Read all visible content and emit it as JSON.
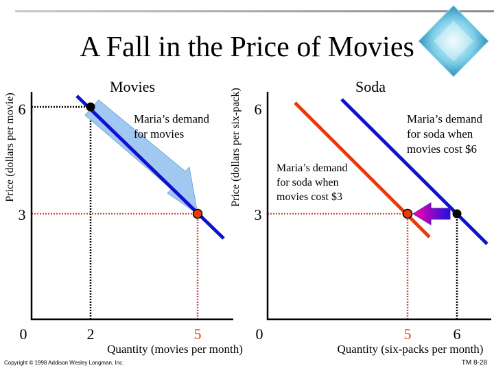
{
  "slide": {
    "title": "A Fall in the Price of Movies",
    "footer_copyright": "Copyright © 1998 Addison Wesley Longman, Inc.",
    "footer_slide_id": "TM 8-28"
  },
  "colors": {
    "demand_blue": "#1010d0",
    "demand_red": "#e83a0a",
    "guide_red": "#d05050",
    "guide_black": "#000000",
    "shift_arrow": "#a0c8f0",
    "axis": "#000000",
    "rule": "#9a9a9a"
  },
  "chart_data": [
    {
      "type": "line",
      "title": "Movies",
      "ylabel": "Price (dollars per movie)",
      "xlabel": "Quantity (movies per month)",
      "x_ticks": [
        {
          "value": 0,
          "label": "0"
        },
        {
          "value": 2,
          "label": "2"
        },
        {
          "value": 5,
          "label": "5"
        }
      ],
      "y_ticks": [
        {
          "value": 3,
          "label": "3"
        },
        {
          "value": 6,
          "label": "6"
        }
      ],
      "series": [
        {
          "name": "Maria’s demand for movies",
          "color": "#1010d0",
          "points": [
            [
              2,
              6
            ],
            [
              5,
              3
            ]
          ]
        }
      ],
      "highlighted_points": [
        {
          "x": 2,
          "y": 6,
          "color": "#000000"
        },
        {
          "x": 5,
          "y": 3,
          "color": "#e83a0a"
        }
      ],
      "annotations": [
        "Maria’s demand",
        "for movies"
      ]
    },
    {
      "type": "line",
      "title": "Soda",
      "ylabel": "Price (dollars per six-pack)",
      "xlabel": "Quantity (six-packs per month)",
      "x_ticks": [
        {
          "value": 0,
          "label": "0"
        },
        {
          "value": 5,
          "label": "5"
        },
        {
          "value": 6,
          "label": "6"
        }
      ],
      "y_ticks": [
        {
          "value": 3,
          "label": "3"
        },
        {
          "value": 6,
          "label": "6"
        }
      ],
      "series": [
        {
          "name": "Maria’s demand for soda when movies cost $6",
          "color": "#1010d0",
          "points": [
            [
              6,
              3
            ]
          ]
        },
        {
          "name": "Maria’s demand for soda when movies cost $3",
          "color": "#e83a0a",
          "points": [
            [
              5,
              3
            ]
          ]
        }
      ],
      "highlighted_points": [
        {
          "x": 6,
          "y": 3,
          "color": "#000000"
        },
        {
          "x": 5,
          "y": 3,
          "color": "#e83a0a"
        }
      ],
      "annotations": {
        "blue_curve": [
          "Maria’s demand",
          "for soda when",
          "movies cost $6"
        ],
        "red_curve": [
          "Maria’s demand",
          "for soda when",
          "movies cost $3"
        ]
      }
    }
  ]
}
